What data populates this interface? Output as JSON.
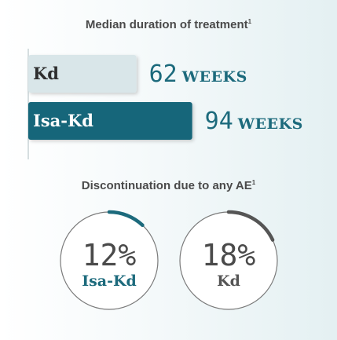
{
  "chart_data": [
    {
      "type": "bar",
      "title": "Median duration of treatment",
      "title_marker": "1",
      "unit": "WEEKS",
      "categories": [
        "Kd",
        "Isa-Kd"
      ],
      "values": [
        62,
        94
      ],
      "xlim": [
        0,
        100
      ],
      "colors": [
        "#d9e6e9",
        "#17667a"
      ]
    },
    {
      "type": "pie",
      "title": "Discontinuation due to any AE",
      "title_marker": "1",
      "items": [
        {
          "label": "Isa-Kd",
          "value": 12,
          "display": "12%",
          "color": "#1c6a7c"
        },
        {
          "label": "Kd",
          "value": 18,
          "display": "18%",
          "color": "#555555"
        }
      ]
    }
  ]
}
